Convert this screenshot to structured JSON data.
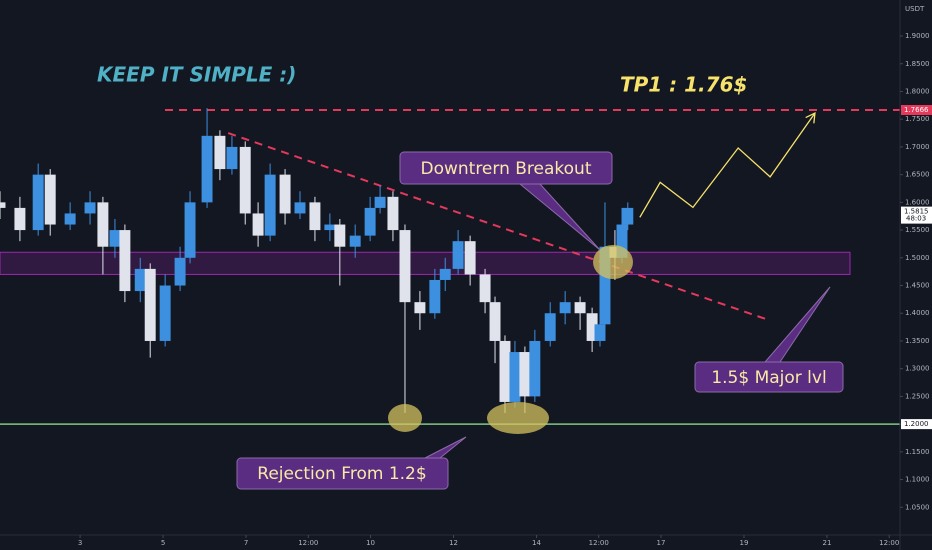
{
  "chart_data": {
    "type": "candlestick",
    "title": "KEEP IT SIMPLE :)",
    "target_label": "TP1 : 1.76$",
    "quote_currency": "USDT",
    "annotations": [
      "Downtrern Breakout",
      "1.5$ Major lvl",
      "Rejection From 1.2$"
    ],
    "up_color": "#3d8fe0",
    "down_color": "#e0e3eb",
    "x": [
      1.07,
      1.55,
      1.99,
      2.28,
      2.76,
      3.24,
      3.55,
      3.84,
      4.08,
      4.45,
      4.69,
      5.05,
      5.41,
      5.65,
      6.06,
      6.37,
      6.66,
      6.98,
      7.29,
      7.58,
      7.94,
      8.3,
      8.66,
      9.02,
      9.26,
      9.63,
      9.99,
      10.23,
      10.54,
      10.83,
      11.19,
      11.55,
      11.8,
      12.11,
      12.4,
      12.76,
      13.0,
      13.24,
      13.48,
      13.72,
      13.96,
      14.33,
      14.69,
      15.05,
      15.34,
      15.53,
      15.65,
      15.89,
      16.06,
      16.2
    ],
    "open": [
      1.6,
      1.59,
      1.55,
      1.65,
      1.56,
      1.58,
      1.6,
      1.52,
      1.55,
      1.44,
      1.48,
      1.35,
      1.45,
      1.5,
      1.6,
      1.72,
      1.66,
      1.7,
      1.58,
      1.54,
      1.65,
      1.58,
      1.6,
      1.55,
      1.56,
      1.52,
      1.54,
      1.59,
      1.61,
      1.55,
      1.42,
      1.4,
      1.46,
      1.48,
      1.53,
      1.47,
      1.42,
      1.35,
      1.24,
      1.33,
      1.25,
      1.35,
      1.4,
      1.42,
      1.4,
      1.35,
      1.38,
      1.52,
      1.5,
      1.56
    ],
    "high": [
      1.62,
      1.61,
      1.67,
      1.66,
      1.6,
      1.62,
      1.61,
      1.57,
      1.56,
      1.5,
      1.49,
      1.47,
      1.52,
      1.62,
      1.77,
      1.73,
      1.72,
      1.71,
      1.6,
      1.67,
      1.66,
      1.62,
      1.61,
      1.58,
      1.57,
      1.56,
      1.61,
      1.63,
      1.62,
      1.56,
      1.44,
      1.48,
      1.5,
      1.55,
      1.54,
      1.48,
      1.43,
      1.36,
      1.35,
      1.34,
      1.37,
      1.42,
      1.44,
      1.43,
      1.41,
      1.4,
      1.6,
      1.55,
      1.59,
      1.6
    ],
    "low": [
      1.57,
      1.53,
      1.54,
      1.54,
      1.55,
      1.56,
      1.47,
      1.5,
      1.42,
      1.42,
      1.32,
      1.34,
      1.44,
      1.49,
      1.59,
      1.64,
      1.65,
      1.56,
      1.52,
      1.53,
      1.56,
      1.57,
      1.53,
      1.53,
      1.45,
      1.5,
      1.53,
      1.58,
      1.53,
      1.22,
      1.37,
      1.39,
      1.44,
      1.47,
      1.45,
      1.4,
      1.31,
      1.22,
      1.23,
      1.22,
      1.24,
      1.34,
      1.38,
      1.37,
      1.33,
      1.34,
      1.37,
      1.46,
      1.49,
      1.55
    ],
    "close": [
      1.59,
      1.55,
      1.65,
      1.56,
      1.58,
      1.6,
      1.52,
      1.55,
      1.44,
      1.48,
      1.35,
      1.45,
      1.5,
      1.6,
      1.72,
      1.66,
      1.7,
      1.58,
      1.54,
      1.65,
      1.58,
      1.6,
      1.55,
      1.56,
      1.52,
      1.54,
      1.59,
      1.61,
      1.55,
      1.42,
      1.4,
      1.46,
      1.48,
      1.53,
      1.47,
      1.42,
      1.35,
      1.24,
      1.33,
      1.25,
      1.35,
      1.4,
      1.42,
      1.4,
      1.35,
      1.38,
      1.52,
      1.5,
      1.56,
      1.59
    ],
    "xlim": [
      1.07,
      22.76
    ],
    "ylim": [
      1.0,
      1.965
    ],
    "xticks": [
      3,
      5,
      7,
      {
        "value": 8.5,
        "label": "12:00"
      },
      10,
      12,
      14,
      {
        "value": 15.5,
        "label": "12:00"
      },
      17,
      19,
      21,
      {
        "value": 22.5,
        "label": "12:00"
      }
    ],
    "yticks": [
      {
        "value": 1.05,
        "label": "1.0500"
      },
      {
        "value": 1.1,
        "label": "1.1000"
      },
      {
        "value": 1.15,
        "label": "1.1500"
      },
      {
        "value": 1.2,
        "label": "1.2000"
      },
      {
        "value": 1.25,
        "label": "1.2500"
      },
      {
        "value": 1.3,
        "label": "1.3000"
      },
      {
        "value": 1.35,
        "label": "1.3500"
      },
      {
        "value": 1.4,
        "label": "1.4000"
      },
      {
        "value": 1.45,
        "label": "1.4500"
      },
      {
        "value": 1.5,
        "label": "1.5000"
      },
      {
        "value": 1.55,
        "label": "1.5500"
      },
      {
        "value": 1.6,
        "label": "1.6000"
      },
      {
        "value": 1.65,
        "label": "1.6500"
      },
      {
        "value": 1.7,
        "label": "1.7000"
      },
      {
        "value": 1.75,
        "label": "1.7500"
      },
      {
        "value": 1.8,
        "label": "1.8000"
      },
      {
        "value": 1.85,
        "label": "1.8500"
      },
      {
        "value": 1.9,
        "label": "1.9000"
      }
    ],
    "levels": [
      {
        "value": 1.7666,
        "label": "1.7666",
        "color": "#e5395c",
        "dashed": true
      },
      {
        "value": 1.2,
        "label": "1.2000",
        "color": "#81c784",
        "dashed": false
      }
    ],
    "last_price": {
      "value": 1.5815,
      "label": "1.5815",
      "countdown": "48:03"
    },
    "zone": {
      "low": 1.47,
      "high": 1.51,
      "color": "#9c27b0"
    },
    "trendline": {
      "x": [
        6.57,
        19.51
      ],
      "y": [
        1.725,
        1.39
      ],
      "color": "#e5395c"
    },
    "projection": {
      "x": [
        16.49,
        16.98,
        17.77,
        18.86,
        19.63,
        20.71
      ],
      "y": [
        1.573,
        1.636,
        1.591,
        1.698,
        1.646,
        1.761
      ],
      "color": "#f7e26b"
    }
  }
}
